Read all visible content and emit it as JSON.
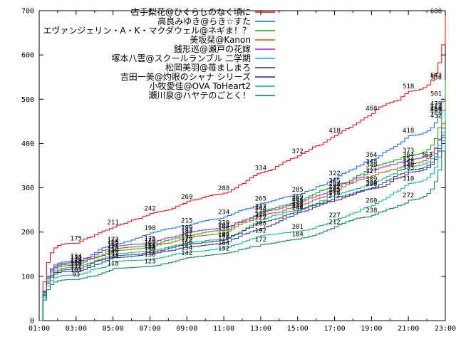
{
  "window": {
    "background": "#ffffff",
    "border_color": "#000000",
    "label_color": "#000000"
  },
  "chart_data": {
    "type": "line",
    "title": "",
    "xlabel": "",
    "ylabel": "",
    "grid": false,
    "legend_position": "top-center-inside",
    "x_axis": {
      "start_hour": 1,
      "end_hour": 23,
      "major_tick_every_hours": 2,
      "minor_tick_every_hours": 1,
      "tick_labels": [
        "01:00",
        "03:00",
        "05:00",
        "07:00",
        "09:00",
        "11:00",
        "13:00",
        "15:00",
        "17:00",
        "19:00",
        "21:00",
        "23:00"
      ]
    },
    "y_axis": {
      "min": 0,
      "max": 700,
      "tick_step": 100,
      "tick_labels": [
        "0",
        "100",
        "200",
        "300",
        "400",
        "500",
        "600",
        "700"
      ]
    },
    "sample_hours": [
      1,
      3,
      5,
      7,
      9,
      11,
      13,
      15,
      17,
      19,
      21,
      23
    ],
    "series": [
      {
        "name": "古手梨花@ひぐらしのなく頃に",
        "color": "#ff0000",
        "values": [
          0,
          175,
          211,
          242,
          269,
          288,
          334,
          372,
          418,
          468,
          518,
          688
        ]
      },
      {
        "name": "高良みゆき@らき☆すた",
        "color": "#0d6bf2",
        "values": [
          0,
          134,
          172,
          198,
          215,
          234,
          265,
          285,
          322,
          364,
          418,
          543
        ]
      },
      {
        "name": "エヴァンジェリン・A・K・マクダウェル@ネギま！？",
        "color": "#00b400",
        "values": [
          0,
          128,
          162,
          170,
          192,
          204,
          247,
          269,
          305,
          348,
          373,
          538
        ]
      },
      {
        "name": "美坂栞@Kanon",
        "color": "#b85a00",
        "values": [
          0,
          125,
          158,
          165,
          187,
          198,
          238,
          258,
          292,
          327,
          354,
          501
        ]
      },
      {
        "name": "銭形巡@瀬戸の花嫁",
        "color": "#a21ff0",
        "values": [
          0,
          131,
          168,
          175,
          199,
          210,
          243,
          264,
          298,
          340,
          364,
          479
        ]
      },
      {
        "name": "塚本八雲@スクールランブル 二学期",
        "color": "#00b8b8",
        "values": [
          0,
          120,
          150,
          158,
          176,
          184,
          228,
          252,
          285,
          309,
          348,
          473
        ]
      },
      {
        "name": "松岡美羽@苺ましまろ",
        "color": "#3f3f3f",
        "values": [
          0,
          116,
          146,
          154,
          172,
          182,
          222,
          248,
          278,
          300,
          340,
          468
        ]
      },
      {
        "name": "吉田一美@灼眼のシャナ シリーズ",
        "color": "#2525bb",
        "values": [
          0,
          112,
          142,
          150,
          166,
          176,
          208,
          244,
          272,
          298,
          335,
          462
        ]
      },
      {
        "name": "小牧愛佳@OVA ToHeart2",
        "color": "#00bb77",
        "values": [
          0,
          103,
          134,
          138,
          154,
          164,
          192,
          201,
          227,
          260,
          310,
          466
        ]
      },
      {
        "name": "瀬川泉@ハヤテのごとく！",
        "color": "#00813e",
        "values": [
          0,
          93,
          118,
          123,
          142,
          152,
          172,
          184,
          212,
          238,
          272,
          452
        ]
      }
    ],
    "extra_point_labels": [
      {
        "series": "瀬川泉@ハヤテのごとく！",
        "hour": 22,
        "value": 363
      }
    ]
  }
}
